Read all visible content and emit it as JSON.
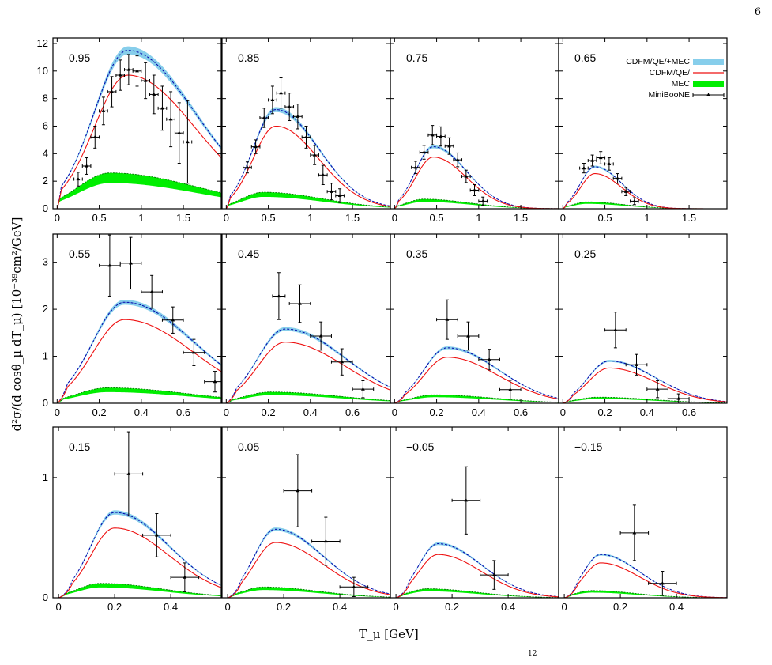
{
  "page_number": "6",
  "footer_mark": "12",
  "colors": {
    "total_band": "#87ceeb",
    "total_line": "#0000aa",
    "qe": "#ee1111",
    "mec_band": "#00ee00",
    "mec_line": "#007700",
    "data": "#000000"
  },
  "chart_data": {
    "type": "line",
    "title": "",
    "xlabel": "T_μ [GeV]",
    "ylabel": "d²σ/(d cosθ_μ dT_μ) [10⁻³⁹cm²/GeV]",
    "legend": {
      "position": "top-right of panel 0.65",
      "entries": [
        "CDFM/QE/+MEC",
        "CDFM/QE/",
        "MEC",
        "MiniBooNE"
      ]
    },
    "grid": false,
    "rows": [
      {
        "ylim": [
          0,
          12.4
        ],
        "yticks": [
          "0",
          "2",
          "4",
          "6",
          "8",
          "10",
          "12"
        ],
        "xlim": [
          -0.05,
          1.95
        ],
        "xticks": [
          "0",
          "0.5",
          "1",
          "1.5"
        ]
      },
      {
        "ylim": [
          0,
          3.6
        ],
        "yticks": [
          "0",
          "1",
          "2",
          "3"
        ],
        "xlim": [
          -0.02,
          0.78
        ],
        "xticks": [
          "0",
          "0.2",
          "0.4",
          "0.6"
        ]
      },
      {
        "ylim": [
          0,
          1.42
        ],
        "yticks": [
          "0",
          "1"
        ],
        "xlim": [
          -0.02,
          0.58
        ],
        "xticks": [
          "0",
          "0.2",
          "0.4"
        ]
      }
    ],
    "panels": [
      {
        "label": "0.95",
        "peak": 0.84,
        "width": 0.4,
        "skew": 0.25,
        "qe": 9.7,
        "total": 11.5,
        "mec": 2.6,
        "data": [
          [
            0.25,
            2.15,
            0.05,
            0.5
          ],
          [
            0.35,
            3.1,
            0.05,
            0.6
          ],
          [
            0.45,
            5.2,
            0.05,
            0.8
          ],
          [
            0.55,
            7.1,
            0.05,
            1.0
          ],
          [
            0.65,
            8.5,
            0.05,
            1.1
          ],
          [
            0.75,
            9.7,
            0.05,
            1.1
          ],
          [
            0.85,
            10.1,
            0.05,
            1.1
          ],
          [
            0.95,
            10.0,
            0.05,
            1.1
          ],
          [
            1.05,
            9.3,
            0.05,
            1.3
          ],
          [
            1.15,
            8.3,
            0.05,
            1.4
          ],
          [
            1.25,
            7.3,
            0.05,
            1.6
          ],
          [
            1.35,
            6.5,
            0.05,
            2.0
          ],
          [
            1.45,
            5.5,
            0.05,
            2.2
          ],
          [
            1.55,
            4.85,
            0.05,
            3.0
          ]
        ]
      },
      {
        "label": "0.85",
        "peak": 0.59,
        "width": 0.27,
        "skew": 0.22,
        "qe": 6.0,
        "total": 7.2,
        "mec": 1.2,
        "data": [
          [
            0.25,
            3.0,
            0.05,
            0.4
          ],
          [
            0.35,
            4.5,
            0.05,
            0.5
          ],
          [
            0.45,
            6.6,
            0.05,
            0.7
          ],
          [
            0.55,
            7.9,
            0.05,
            1.0
          ],
          [
            0.65,
            8.4,
            0.05,
            1.1
          ],
          [
            0.75,
            7.4,
            0.05,
            1.0
          ],
          [
            0.85,
            6.7,
            0.05,
            0.9
          ],
          [
            0.95,
            5.2,
            0.05,
            0.8
          ],
          [
            1.05,
            3.9,
            0.05,
            0.7
          ],
          [
            1.15,
            2.45,
            0.05,
            0.7
          ],
          [
            1.25,
            1.25,
            0.05,
            0.6
          ],
          [
            1.35,
            0.95,
            0.05,
            0.5
          ]
        ]
      },
      {
        "label": "0.75",
        "peak": 0.46,
        "width": 0.21,
        "skew": 0.22,
        "qe": 3.75,
        "total": 4.5,
        "mec": 0.7,
        "data": [
          [
            0.25,
            3.0,
            0.05,
            0.45
          ],
          [
            0.35,
            4.1,
            0.05,
            0.5
          ],
          [
            0.45,
            5.35,
            0.05,
            0.7
          ],
          [
            0.55,
            5.25,
            0.05,
            0.7
          ],
          [
            0.65,
            4.55,
            0.05,
            0.6
          ],
          [
            0.75,
            3.55,
            0.05,
            0.5
          ],
          [
            0.85,
            2.35,
            0.05,
            0.45
          ],
          [
            0.95,
            1.35,
            0.05,
            0.4
          ],
          [
            1.05,
            0.55,
            0.05,
            0.3
          ]
        ]
      },
      {
        "label": "0.65",
        "peak": 0.38,
        "width": 0.17,
        "skew": 0.22,
        "qe": 2.55,
        "total": 3.05,
        "mec": 0.5,
        "data": [
          [
            0.25,
            2.95,
            0.05,
            0.35
          ],
          [
            0.35,
            3.5,
            0.05,
            0.4
          ],
          [
            0.45,
            3.7,
            0.05,
            0.45
          ],
          [
            0.55,
            3.25,
            0.05,
            0.45
          ],
          [
            0.65,
            2.2,
            0.05,
            0.35
          ],
          [
            0.75,
            1.25,
            0.05,
            0.3
          ],
          [
            0.85,
            0.55,
            0.05,
            0.25
          ]
        ]
      },
      {
        "label": "0.55",
        "peak": 0.32,
        "width": 0.15,
        "skew": 0.3,
        "qe": 1.78,
        "total": 2.15,
        "mec": 0.33,
        "data": [
          [
            0.25,
            2.93,
            0.05,
            0.65
          ],
          [
            0.35,
            2.98,
            0.05,
            0.55
          ],
          [
            0.45,
            2.37,
            0.05,
            0.35
          ],
          [
            0.55,
            1.77,
            0.05,
            0.28
          ],
          [
            0.65,
            1.08,
            0.05,
            0.28
          ],
          [
            0.75,
            0.46,
            0.05,
            0.22
          ]
        ]
      },
      {
        "label": "0.45",
        "peak": 0.28,
        "width": 0.13,
        "skew": 0.3,
        "qe": 1.3,
        "total": 1.58,
        "mec": 0.24,
        "data": [
          [
            0.25,
            2.28,
            0.03,
            0.5
          ],
          [
            0.35,
            2.12,
            0.05,
            0.4
          ],
          [
            0.45,
            1.43,
            0.05,
            0.3
          ],
          [
            0.55,
            0.88,
            0.05,
            0.28
          ],
          [
            0.65,
            0.3,
            0.05,
            0.18
          ]
        ]
      },
      {
        "label": "0.35",
        "peak": 0.25,
        "width": 0.11,
        "skew": 0.3,
        "qe": 0.98,
        "total": 1.18,
        "mec": 0.18,
        "data": [
          [
            0.25,
            1.78,
            0.05,
            0.42
          ],
          [
            0.35,
            1.43,
            0.05,
            0.3
          ],
          [
            0.45,
            0.93,
            0.05,
            0.22
          ],
          [
            0.55,
            0.29,
            0.05,
            0.2
          ]
        ]
      },
      {
        "label": "0.25",
        "peak": 0.22,
        "width": 0.1,
        "skew": 0.3,
        "qe": 0.75,
        "total": 0.9,
        "mec": 0.13,
        "data": [
          [
            0.25,
            1.56,
            0.05,
            0.38
          ],
          [
            0.35,
            0.82,
            0.05,
            0.22
          ],
          [
            0.45,
            0.3,
            0.05,
            0.18
          ],
          [
            0.55,
            0.1,
            0.05,
            0.1
          ]
        ]
      },
      {
        "label": "0.15",
        "peak": 0.2,
        "width": 0.085,
        "skew": 0.32,
        "qe": 0.58,
        "total": 0.71,
        "mec": 0.12,
        "data": [
          [
            0.25,
            1.03,
            0.05,
            0.35
          ],
          [
            0.35,
            0.52,
            0.05,
            0.18
          ],
          [
            0.45,
            0.17,
            0.05,
            0.12
          ]
        ]
      },
      {
        "label": "0.05",
        "peak": 0.17,
        "width": 0.075,
        "skew": 0.32,
        "qe": 0.46,
        "total": 0.57,
        "mec": 0.09,
        "data": [
          [
            0.25,
            0.89,
            0.05,
            0.3
          ],
          [
            0.35,
            0.47,
            0.05,
            0.2
          ],
          [
            0.45,
            0.09,
            0.05,
            0.08
          ]
        ]
      },
      {
        "label": "−0.05",
        "peak": 0.15,
        "width": 0.068,
        "skew": 0.32,
        "qe": 0.36,
        "total": 0.45,
        "mec": 0.075,
        "data": [
          [
            0.25,
            0.81,
            0.05,
            0.28
          ],
          [
            0.35,
            0.19,
            0.05,
            0.12
          ]
        ]
      },
      {
        "label": "−0.15",
        "peak": 0.13,
        "width": 0.06,
        "skew": 0.32,
        "qe": 0.29,
        "total": 0.36,
        "mec": 0.06,
        "data": [
          [
            0.25,
            0.54,
            0.05,
            0.23
          ],
          [
            0.35,
            0.12,
            0.05,
            0.1
          ]
        ]
      }
    ]
  }
}
